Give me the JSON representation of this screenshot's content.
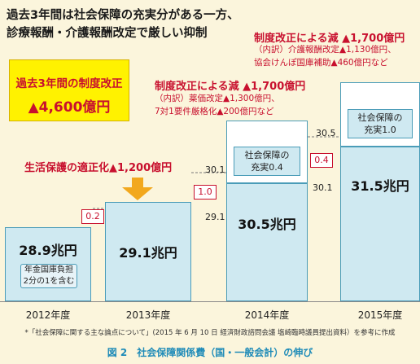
{
  "headline": {
    "line1": "過去3年間は社会保障の充実分がある一方、",
    "line2": "診療報酬・介護報酬改定で厳しい抑制"
  },
  "total_box": {
    "label": "過去3年間の制度改正",
    "value": "▲4,600億円"
  },
  "reforms": {
    "r2012": {
      "title": "生活保護の適正化▲1,200億円"
    },
    "r2013": {
      "title": "制度改正による減 ▲1,700億円",
      "sub1": "（内訳）薬価改定▲1,300億円、",
      "sub2": "7対1要件厳格化▲200億円など"
    },
    "r2014": {
      "title": "制度改正による減 ▲1,700億円",
      "sub1": "（内訳）介護報酬改定▲1,130億円、",
      "sub2": "協会けんぽ国庫補助▲460億円など"
    }
  },
  "chart_data": {
    "type": "bar",
    "categories": [
      "2012年度",
      "2013年度",
      "2014年度",
      "2015年度"
    ],
    "values": [
      28.9,
      29.1,
      30.5,
      31.5
    ],
    "value_labels": [
      "28.9兆円",
      "29.1兆円",
      "30.5兆円",
      "31.5兆円"
    ],
    "unit": "兆円",
    "increments": [
      {
        "label": "0.2",
        "from": 28.9,
        "to": 29.1
      },
      {
        "label": "1.0",
        "from": 29.1,
        "to": 30.1
      },
      {
        "label": "0.4",
        "from": 30.1,
        "to": 30.5
      }
    ],
    "boundary_labels": {
      "v2913": "29.1",
      "v3013": "30.1",
      "v3014": "30.1",
      "v3014b": "30.5"
    },
    "enhancements": [
      {
        "year": "2014年度",
        "line1": "社会保障の",
        "line2": "充実0.4"
      },
      {
        "year": "2015年度",
        "line1": "社会保障の",
        "line2": "充実1.0"
      }
    ],
    "notes": {
      "n2012_1": "年金国庫負担",
      "n2012_2": "2分の1を含む"
    }
  },
  "source": "*「社会保障に関する主な論点について」(2015 年 6 月 10 日 経済財政諮問会議 塩崎臨時議員提出資料）を参考に作成",
  "caption": "図 2　社会保障関係費（国・一般会計）の伸び",
  "colors": {
    "bar_fill": "#cfe9f1",
    "bar_border": "#4a9cb8",
    "accent_red": "#c8102e",
    "arrow_orange": "#f2a81d",
    "caption_blue": "#1e8bb8",
    "background": "#fbf5dc"
  }
}
